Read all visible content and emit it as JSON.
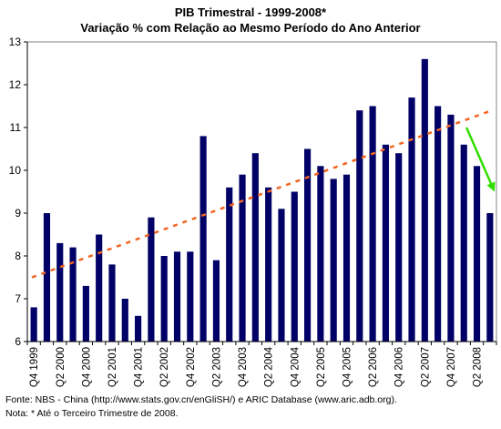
{
  "chart_data": {
    "type": "bar",
    "title": "PIB Trimestral - 1999-2008*",
    "subtitle": "Variação % com Relação ao Mesmo Período do Ano Anterior",
    "xlabel": "",
    "ylabel": "",
    "ylim": [
      6,
      13
    ],
    "yticks": [
      6,
      7,
      8,
      9,
      10,
      11,
      12,
      13
    ],
    "categories": [
      "Q4 1999",
      "Q1 2000",
      "Q2 2000",
      "Q3 2000",
      "Q4 2000",
      "Q1 2001",
      "Q2 2001",
      "Q3 2001",
      "Q4 2001",
      "Q1 2002",
      "Q2 2002",
      "Q3 2002",
      "Q4 2002",
      "Q1 2003",
      "Q2 2003",
      "Q3 2003",
      "Q4 2003",
      "Q1 2004",
      "Q2 2004",
      "Q3 2004",
      "Q4 2004",
      "Q1 2005",
      "Q2 2005",
      "Q3 2005",
      "Q4 2005",
      "Q1 2006",
      "Q2 2006",
      "Q3 2006",
      "Q4 2006",
      "Q1 2007",
      "Q2 2007",
      "Q3 2007",
      "Q4 2007",
      "Q1 2008",
      "Q2 2008",
      "Q3 2008"
    ],
    "tick_labels": [
      "Q4 1999",
      "Q2 2000",
      "Q4 2000",
      "Q2 2001",
      "Q4 2001",
      "Q2 2002",
      "Q4 2002",
      "Q2 2003",
      "Q4 2003",
      "Q2 2004",
      "Q4 2004",
      "Q2 2005",
      "Q4 2005",
      "Q2 2006",
      "Q4 2006",
      "Q2 2007",
      "Q4 2007",
      "Q2 2008"
    ],
    "series": [
      {
        "values": [
          6.8,
          9.0,
          8.3,
          8.2,
          7.3,
          8.5,
          7.8,
          7.0,
          6.6,
          8.9,
          8.0,
          8.1,
          8.1,
          10.8,
          7.9,
          9.6,
          9.9,
          10.4,
          9.6,
          9.1,
          9.5,
          10.5,
          10.1,
          9.8,
          9.9,
          11.4,
          11.5,
          10.6,
          10.4,
          11.7,
          12.6,
          11.5,
          11.3,
          10.6,
          10.1,
          9.0
        ]
      }
    ],
    "trendline": {
      "start": 7.5,
      "end": 11.4,
      "style": "dashed",
      "color": "#f26522"
    },
    "arrow": {
      "from": 11.0,
      "to": 9.5,
      "color": "#33dd00"
    },
    "grid": false,
    "colors": {
      "bar": "#000066",
      "plot_bg": "#ffffff",
      "axis": "#000000"
    }
  },
  "footer": {
    "source": "Fonte: NBS - China (http://www.stats.gov.cn/enGliSH/) e ARIC Database (www.aric.adb.org).",
    "note": "Nota: * Até o Terceiro Trimestre de 2008."
  }
}
